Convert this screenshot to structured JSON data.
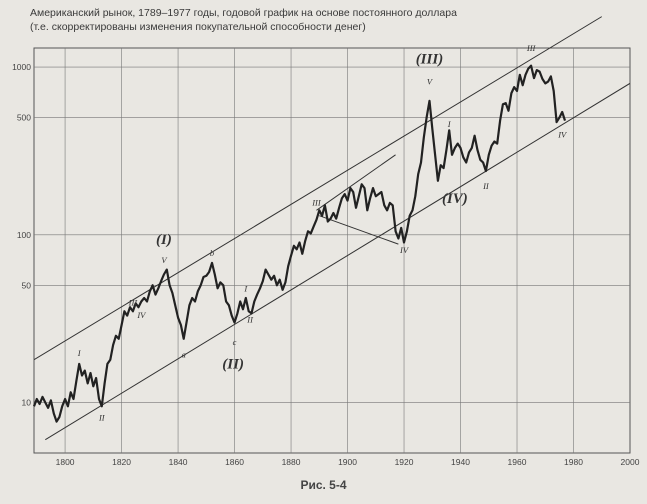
{
  "chart_data": {
    "type": "line",
    "title": "Американский рынок, 1789–1977 годы, годовой график на основе постоянного доллара",
    "subtitle": "(т.е. скорректированы изменения покупательной способности денег)",
    "caption": "Рис. 5-4",
    "xlabel": "",
    "ylabel": "",
    "xlim": [
      1789,
      2000
    ],
    "ylim": [
      5,
      1300
    ],
    "y_scale": "log",
    "x_ticks": [
      1800,
      1820,
      1840,
      1860,
      1880,
      1900,
      1920,
      1940,
      1960,
      1980,
      2000
    ],
    "y_ticks": [
      10,
      50,
      100,
      500,
      1000
    ],
    "grid": true,
    "series": [
      {
        "values": [
          [
            1789,
            9.5
          ],
          [
            1790,
            10.5
          ],
          [
            1791,
            9.8
          ],
          [
            1792,
            10.8
          ],
          [
            1793,
            10
          ],
          [
            1794,
            9.3
          ],
          [
            1795,
            10.3
          ],
          [
            1796,
            8.6
          ],
          [
            1797,
            7.7
          ],
          [
            1798,
            8.2
          ],
          [
            1799,
            9.5
          ],
          [
            1800,
            10.5
          ],
          [
            1801,
            9.5
          ],
          [
            1802,
            11.5
          ],
          [
            1803,
            10.5
          ],
          [
            1804,
            13.5
          ],
          [
            1805,
            17
          ],
          [
            1806,
            14.5
          ],
          [
            1807,
            15.5
          ],
          [
            1808,
            13
          ],
          [
            1809,
            15
          ],
          [
            1810,
            12.5
          ],
          [
            1811,
            14
          ],
          [
            1812,
            10.5
          ],
          [
            1813,
            9.5
          ],
          [
            1814,
            13
          ],
          [
            1815,
            17
          ],
          [
            1816,
            18
          ],
          [
            1817,
            22
          ],
          [
            1818,
            25
          ],
          [
            1819,
            24
          ],
          [
            1820,
            29
          ],
          [
            1821,
            35
          ],
          [
            1822,
            33
          ],
          [
            1823,
            37
          ],
          [
            1824,
            35
          ],
          [
            1825,
            39
          ],
          [
            1826,
            37
          ],
          [
            1827,
            40
          ],
          [
            1828,
            42
          ],
          [
            1829,
            40
          ],
          [
            1830,
            46
          ],
          [
            1831,
            50
          ],
          [
            1832,
            44
          ],
          [
            1833,
            48
          ],
          [
            1834,
            53
          ],
          [
            1835,
            58
          ],
          [
            1836,
            62
          ],
          [
            1837,
            50
          ],
          [
            1838,
            45
          ],
          [
            1839,
            38
          ],
          [
            1840,
            32
          ],
          [
            1841,
            29
          ],
          [
            1842,
            24
          ],
          [
            1843,
            30
          ],
          [
            1844,
            38
          ],
          [
            1845,
            42
          ],
          [
            1846,
            40
          ],
          [
            1847,
            46
          ],
          [
            1848,
            50
          ],
          [
            1849,
            56
          ],
          [
            1850,
            57
          ],
          [
            1851,
            60
          ],
          [
            1852,
            68
          ],
          [
            1853,
            58
          ],
          [
            1854,
            48
          ],
          [
            1855,
            52
          ],
          [
            1856,
            50
          ],
          [
            1857,
            40
          ],
          [
            1858,
            38
          ],
          [
            1859,
            33
          ],
          [
            1860,
            30
          ],
          [
            1861,
            34
          ],
          [
            1862,
            40
          ],
          [
            1863,
            36
          ],
          [
            1864,
            42
          ],
          [
            1865,
            35
          ],
          [
            1866,
            34
          ],
          [
            1867,
            40
          ],
          [
            1868,
            44
          ],
          [
            1869,
            48
          ],
          [
            1870,
            53
          ],
          [
            1871,
            62
          ],
          [
            1872,
            58
          ],
          [
            1873,
            54
          ],
          [
            1874,
            57
          ],
          [
            1875,
            50
          ],
          [
            1876,
            54
          ],
          [
            1877,
            47
          ],
          [
            1878,
            52
          ],
          [
            1879,
            65
          ],
          [
            1880,
            75
          ],
          [
            1881,
            86
          ],
          [
            1882,
            82
          ],
          [
            1883,
            90
          ],
          [
            1884,
            77
          ],
          [
            1885,
            92
          ],
          [
            1886,
            105
          ],
          [
            1887,
            102
          ],
          [
            1888,
            112
          ],
          [
            1889,
            123
          ],
          [
            1890,
            140
          ],
          [
            1891,
            130
          ],
          [
            1892,
            150
          ],
          [
            1893,
            120
          ],
          [
            1894,
            125
          ],
          [
            1895,
            135
          ],
          [
            1896,
            125
          ],
          [
            1897,
            145
          ],
          [
            1898,
            165
          ],
          [
            1899,
            175
          ],
          [
            1900,
            160
          ],
          [
            1901,
            190
          ],
          [
            1902,
            180
          ],
          [
            1903,
            145
          ],
          [
            1904,
            170
          ],
          [
            1905,
            200
          ],
          [
            1906,
            190
          ],
          [
            1907,
            140
          ],
          [
            1908,
            165
          ],
          [
            1909,
            190
          ],
          [
            1910,
            170
          ],
          [
            1911,
            175
          ],
          [
            1912,
            180
          ],
          [
            1913,
            150
          ],
          [
            1914,
            140
          ],
          [
            1915,
            155
          ],
          [
            1916,
            150
          ],
          [
            1917,
            105
          ],
          [
            1918,
            95
          ],
          [
            1919,
            110
          ],
          [
            1920,
            90
          ],
          [
            1921,
            105
          ],
          [
            1922,
            130
          ],
          [
            1923,
            140
          ],
          [
            1924,
            170
          ],
          [
            1925,
            230
          ],
          [
            1926,
            270
          ],
          [
            1927,
            380
          ],
          [
            1928,
            500
          ],
          [
            1929,
            630
          ],
          [
            1930,
            430
          ],
          [
            1931,
            300
          ],
          [
            1932,
            210
          ],
          [
            1933,
            260
          ],
          [
            1934,
            250
          ],
          [
            1935,
            320
          ],
          [
            1936,
            420
          ],
          [
            1937,
            300
          ],
          [
            1938,
            330
          ],
          [
            1939,
            350
          ],
          [
            1940,
            330
          ],
          [
            1941,
            290
          ],
          [
            1942,
            270
          ],
          [
            1943,
            310
          ],
          [
            1944,
            330
          ],
          [
            1945,
            390
          ],
          [
            1946,
            320
          ],
          [
            1947,
            280
          ],
          [
            1948,
            270
          ],
          [
            1949,
            240
          ],
          [
            1950,
            300
          ],
          [
            1951,
            340
          ],
          [
            1952,
            360
          ],
          [
            1953,
            350
          ],
          [
            1954,
            480
          ],
          [
            1955,
            600
          ],
          [
            1956,
            610
          ],
          [
            1957,
            550
          ],
          [
            1958,
            700
          ],
          [
            1959,
            760
          ],
          [
            1960,
            720
          ],
          [
            1961,
            900
          ],
          [
            1962,
            780
          ],
          [
            1963,
            900
          ],
          [
            1964,
            980
          ],
          [
            1965,
            1020
          ],
          [
            1966,
            860
          ],
          [
            1967,
            960
          ],
          [
            1968,
            940
          ],
          [
            1969,
            850
          ],
          [
            1970,
            800
          ],
          [
            1971,
            820
          ],
          [
            1972,
            880
          ],
          [
            1973,
            720
          ],
          [
            1974,
            470
          ],
          [
            1975,
            500
          ],
          [
            1976,
            540
          ],
          [
            1977,
            480
          ]
        ]
      }
    ],
    "channel_lines": [
      {
        "start": [
          1789,
          18
        ],
        "end": [
          1990,
          2000
        ]
      },
      {
        "start": [
          1793,
          6
        ],
        "end": [
          2000,
          800
        ]
      }
    ],
    "wave_labels": [
      {
        "text": "I",
        "x": 1805,
        "y": 19
      },
      {
        "text": "II",
        "x": 1813,
        "y": 7.8
      },
      {
        "text": "III",
        "x": 1824,
        "y": 38
      },
      {
        "text": "IV",
        "x": 1827,
        "y": 32
      },
      {
        "text": "(I)",
        "x": 1835,
        "y": 88
      },
      {
        "text": "V",
        "x": 1835,
        "y": 68
      },
      {
        "text": "a",
        "x": 1842,
        "y": 18.5
      },
      {
        "text": "b",
        "x": 1852,
        "y": 75
      },
      {
        "text": "c",
        "x": 1860,
        "y": 22
      },
      {
        "text": "(II)",
        "x": 1859.5,
        "y": 16
      },
      {
        "text": "I",
        "x": 1864,
        "y": 46
      },
      {
        "text": "II",
        "x": 1865.5,
        "y": 30
      },
      {
        "text": "III",
        "x": 1889,
        "y": 150
      },
      {
        "text": "IV",
        "x": 1920,
        "y": 78
      },
      {
        "text": "(III)",
        "x": 1929,
        "y": 1050
      },
      {
        "text": "V",
        "x": 1929,
        "y": 790
      },
      {
        "text": "I",
        "x": 1936,
        "y": 440
      },
      {
        "text": "(IV)",
        "x": 1938,
        "y": 155
      },
      {
        "text": "II",
        "x": 1949,
        "y": 188
      },
      {
        "text": "III",
        "x": 1965,
        "y": 1250
      },
      {
        "text": "IV",
        "x": 1976,
        "y": 380
      }
    ],
    "triangle_lines": [
      {
        "start": [
          1890,
          130
        ],
        "end": [
          1918,
          88
        ]
      },
      {
        "start": [
          1889,
          140
        ],
        "end": [
          1917,
          300
        ]
      }
    ]
  }
}
